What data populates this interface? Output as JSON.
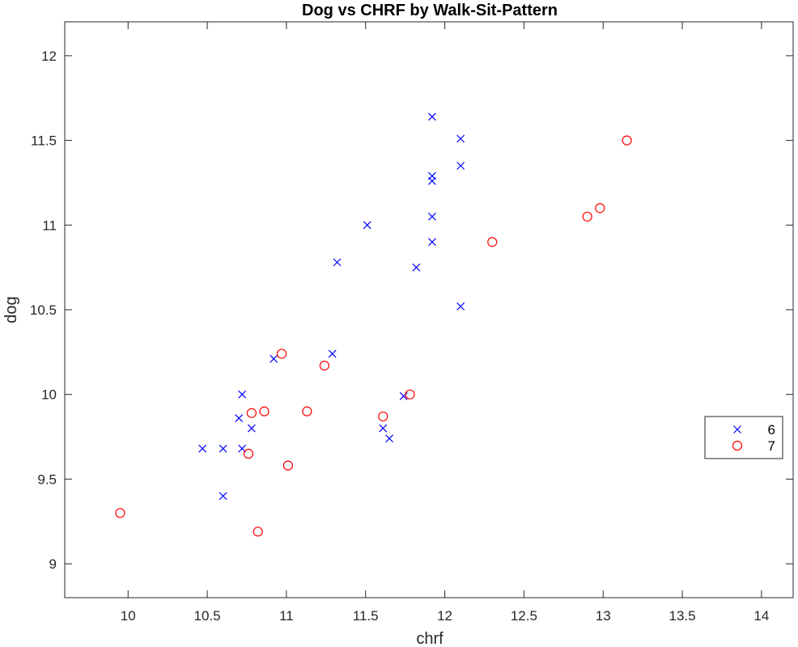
{
  "chart_data": {
    "type": "scatter",
    "title": "Dog vs CHRF by Walk-Sit-Pattern",
    "xlabel": "chrf",
    "ylabel": "dog",
    "xlim": [
      9.6,
      14.2
    ],
    "ylim": [
      8.8,
      12.2
    ],
    "xticks": [
      "10",
      "10.5",
      "11",
      "11.5",
      "12",
      "12.5",
      "13",
      "13.5",
      "14"
    ],
    "yticks": [
      "9",
      "9.5",
      "10",
      "10.5",
      "11",
      "11.5",
      "12"
    ],
    "grid": false,
    "legend_position": "right",
    "series": [
      {
        "name": "6",
        "marker": "x",
        "color": "#0000ff",
        "points": [
          [
            11.92,
            11.64
          ],
          [
            12.1,
            11.51
          ],
          [
            12.1,
            11.35
          ],
          [
            11.92,
            11.29
          ],
          [
            11.92,
            11.26
          ],
          [
            11.92,
            11.05
          ],
          [
            11.51,
            11.0
          ],
          [
            11.92,
            10.9
          ],
          [
            11.32,
            10.78
          ],
          [
            11.82,
            10.75
          ],
          [
            12.1,
            10.52
          ],
          [
            11.29,
            10.24
          ],
          [
            10.92,
            10.21
          ],
          [
            10.72,
            10.0
          ],
          [
            11.74,
            9.99
          ],
          [
            10.7,
            9.86
          ],
          [
            10.78,
            9.8
          ],
          [
            11.61,
            9.8
          ],
          [
            11.65,
            9.74
          ],
          [
            10.47,
            9.68
          ],
          [
            10.6,
            9.68
          ],
          [
            10.72,
            9.68
          ],
          [
            10.6,
            9.4
          ]
        ]
      },
      {
        "name": "7",
        "marker": "o",
        "color": "#ff0000",
        "points": [
          [
            13.15,
            11.5
          ],
          [
            12.98,
            11.1
          ],
          [
            12.9,
            11.05
          ],
          [
            12.3,
            10.9
          ],
          [
            10.97,
            10.24
          ],
          [
            11.24,
            10.17
          ],
          [
            11.78,
            10.0
          ],
          [
            10.86,
            9.9
          ],
          [
            11.13,
            9.9
          ],
          [
            10.78,
            9.89
          ],
          [
            11.61,
            9.87
          ],
          [
            10.76,
            9.65
          ],
          [
            11.01,
            9.58
          ],
          [
            9.95,
            9.3
          ],
          [
            10.82,
            9.19
          ]
        ]
      }
    ]
  }
}
